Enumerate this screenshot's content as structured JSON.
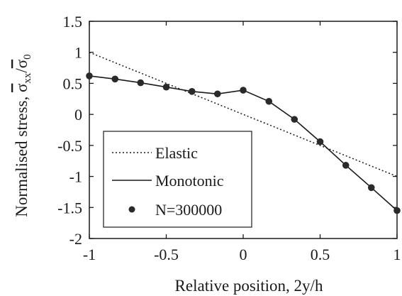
{
  "chart_data": {
    "type": "line",
    "title": "",
    "xlabel": "Relative position, 2y/h",
    "ylabel": {
      "main": "Normalised stress, ",
      "numerator": "σ",
      "numerator_sub": "xx",
      "slash": "/",
      "denominator": "σ",
      "denominator_sub": "0"
    },
    "xlim": [
      -1,
      1
    ],
    "ylim": [
      -2,
      1.5
    ],
    "xticks": [
      -1,
      -0.5,
      0,
      0.5,
      1
    ],
    "xtick_labels": [
      "-1",
      "-0.5",
      "0",
      "0.5",
      "1"
    ],
    "yticks": [
      1.5,
      1,
      0.5,
      0,
      -0.5,
      -1,
      -1.5,
      -2
    ],
    "ytick_labels": [
      "1.5",
      "1",
      "0.5",
      "0",
      "-0.5",
      "-1",
      "-1.5",
      "-2"
    ],
    "grid": false,
    "legend_position": "bottom-left",
    "series": [
      {
        "name": "Elastic",
        "style": "dotted",
        "x": [
          -1,
          1
        ],
        "y": [
          1.0,
          -1.0
        ]
      },
      {
        "name": "Monotonic",
        "style": "solid",
        "x": [
          -1,
          -0.833,
          -0.667,
          -0.5,
          -0.333,
          -0.167,
          0,
          0.167,
          0.333,
          0.5,
          0.667,
          0.833,
          1
        ],
        "y": [
          0.62,
          0.57,
          0.51,
          0.44,
          0.37,
          0.33,
          0.39,
          0.21,
          -0.08,
          -0.44,
          -0.82,
          -1.18,
          -1.55
        ]
      },
      {
        "name": "N=300000",
        "style": "markers",
        "x": [
          -1,
          -0.833,
          -0.667,
          -0.5,
          -0.333,
          -0.167,
          0,
          0.167,
          0.333,
          0.5,
          0.667,
          0.833,
          1
        ],
        "y": [
          0.62,
          0.57,
          0.51,
          0.44,
          0.37,
          0.33,
          0.39,
          0.21,
          -0.08,
          -0.44,
          -0.82,
          -1.18,
          -1.55
        ]
      }
    ]
  }
}
